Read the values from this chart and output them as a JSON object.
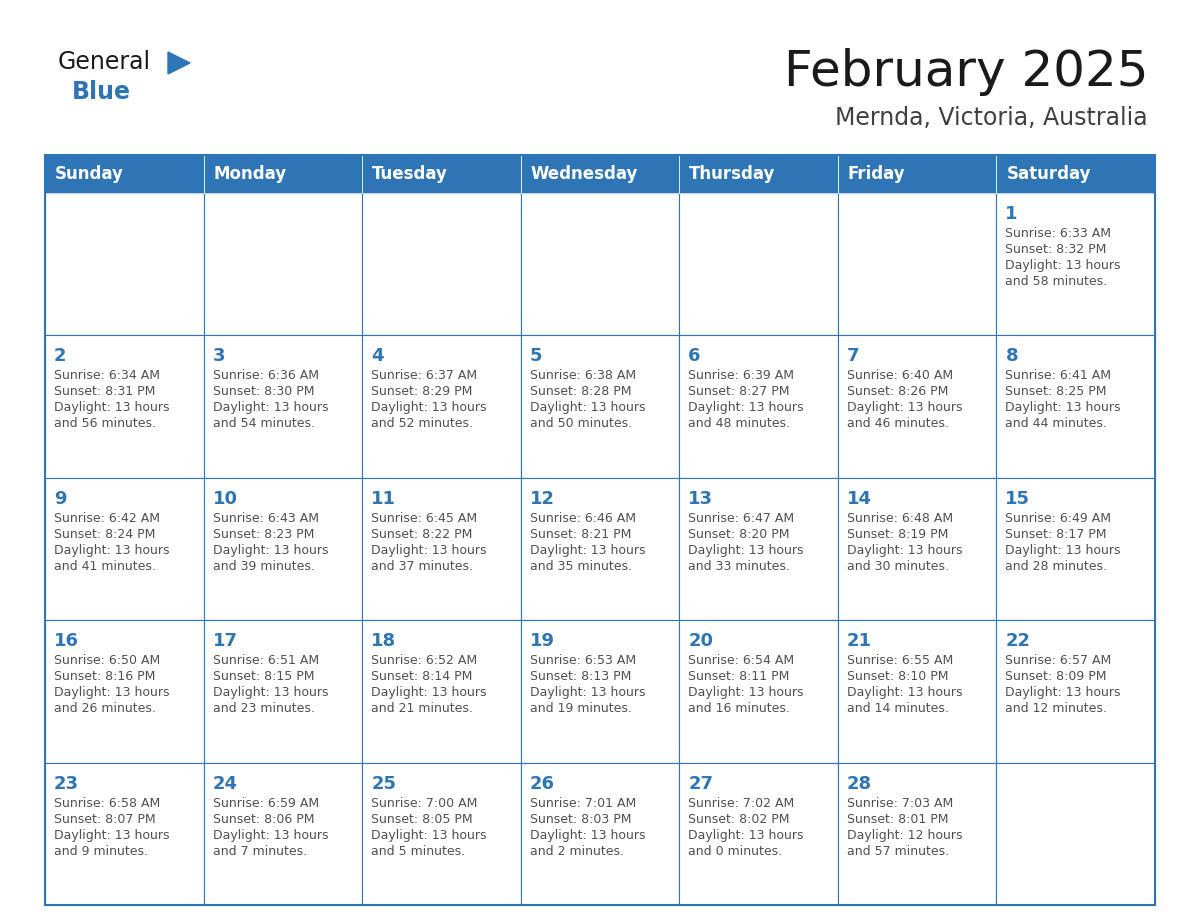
{
  "title": "February 2025",
  "subtitle": "Mernda, Victoria, Australia",
  "days_of_week": [
    "Sunday",
    "Monday",
    "Tuesday",
    "Wednesday",
    "Thursday",
    "Friday",
    "Saturday"
  ],
  "header_bg": "#2E75B6",
  "header_text": "#FFFFFF",
  "cell_bg": "#FFFFFF",
  "cell_border": "#2E75B6",
  "day_num_color": "#2E75B6",
  "info_color": "#505050",
  "title_color": "#1a1a1a",
  "subtitle_color": "#404040",
  "fig_bg": "#FFFFFF",
  "logo_general_color": "#1a1a1a",
  "logo_blue_color": "#2E75B6",
  "logo_triangle_color": "#2E75B6",
  "calendar_data": [
    [
      null,
      null,
      null,
      null,
      null,
      null,
      1
    ],
    [
      2,
      3,
      4,
      5,
      6,
      7,
      8
    ],
    [
      9,
      10,
      11,
      12,
      13,
      14,
      15
    ],
    [
      16,
      17,
      18,
      19,
      20,
      21,
      22
    ],
    [
      23,
      24,
      25,
      26,
      27,
      28,
      null
    ]
  ],
  "sunrise_data": {
    "1": "6:33 AM",
    "2": "6:34 AM",
    "3": "6:36 AM",
    "4": "6:37 AM",
    "5": "6:38 AM",
    "6": "6:39 AM",
    "7": "6:40 AM",
    "8": "6:41 AM",
    "9": "6:42 AM",
    "10": "6:43 AM",
    "11": "6:45 AM",
    "12": "6:46 AM",
    "13": "6:47 AM",
    "14": "6:48 AM",
    "15": "6:49 AM",
    "16": "6:50 AM",
    "17": "6:51 AM",
    "18": "6:52 AM",
    "19": "6:53 AM",
    "20": "6:54 AM",
    "21": "6:55 AM",
    "22": "6:57 AM",
    "23": "6:58 AM",
    "24": "6:59 AM",
    "25": "7:00 AM",
    "26": "7:01 AM",
    "27": "7:02 AM",
    "28": "7:03 AM"
  },
  "sunset_data": {
    "1": "8:32 PM",
    "2": "8:31 PM",
    "3": "8:30 PM",
    "4": "8:29 PM",
    "5": "8:28 PM",
    "6": "8:27 PM",
    "7": "8:26 PM",
    "8": "8:25 PM",
    "9": "8:24 PM",
    "10": "8:23 PM",
    "11": "8:22 PM",
    "12": "8:21 PM",
    "13": "8:20 PM",
    "14": "8:19 PM",
    "15": "8:17 PM",
    "16": "8:16 PM",
    "17": "8:15 PM",
    "18": "8:14 PM",
    "19": "8:13 PM",
    "20": "8:11 PM",
    "21": "8:10 PM",
    "22": "8:09 PM",
    "23": "8:07 PM",
    "24": "8:06 PM",
    "25": "8:05 PM",
    "26": "8:03 PM",
    "27": "8:02 PM",
    "28": "8:01 PM"
  },
  "daylight_data": {
    "1": [
      "13 hours",
      "and 58 minutes."
    ],
    "2": [
      "13 hours",
      "and 56 minutes."
    ],
    "3": [
      "13 hours",
      "and 54 minutes."
    ],
    "4": [
      "13 hours",
      "and 52 minutes."
    ],
    "5": [
      "13 hours",
      "and 50 minutes."
    ],
    "6": [
      "13 hours",
      "and 48 minutes."
    ],
    "7": [
      "13 hours",
      "and 46 minutes."
    ],
    "8": [
      "13 hours",
      "and 44 minutes."
    ],
    "9": [
      "13 hours",
      "and 41 minutes."
    ],
    "10": [
      "13 hours",
      "and 39 minutes."
    ],
    "11": [
      "13 hours",
      "and 37 minutes."
    ],
    "12": [
      "13 hours",
      "and 35 minutes."
    ],
    "13": [
      "13 hours",
      "and 33 minutes."
    ],
    "14": [
      "13 hours",
      "and 30 minutes."
    ],
    "15": [
      "13 hours",
      "and 28 minutes."
    ],
    "16": [
      "13 hours",
      "and 26 minutes."
    ],
    "17": [
      "13 hours",
      "and 23 minutes."
    ],
    "18": [
      "13 hours",
      "and 21 minutes."
    ],
    "19": [
      "13 hours",
      "and 19 minutes."
    ],
    "20": [
      "13 hours",
      "and 16 minutes."
    ],
    "21": [
      "13 hours",
      "and 14 minutes."
    ],
    "22": [
      "13 hours",
      "and 12 minutes."
    ],
    "23": [
      "13 hours",
      "and 9 minutes."
    ],
    "24": [
      "13 hours",
      "and 7 minutes."
    ],
    "25": [
      "13 hours",
      "and 5 minutes."
    ],
    "26": [
      "13 hours",
      "and 2 minutes."
    ],
    "27": [
      "13 hours",
      "and 0 minutes."
    ],
    "28": [
      "12 hours",
      "and 57 minutes."
    ]
  }
}
